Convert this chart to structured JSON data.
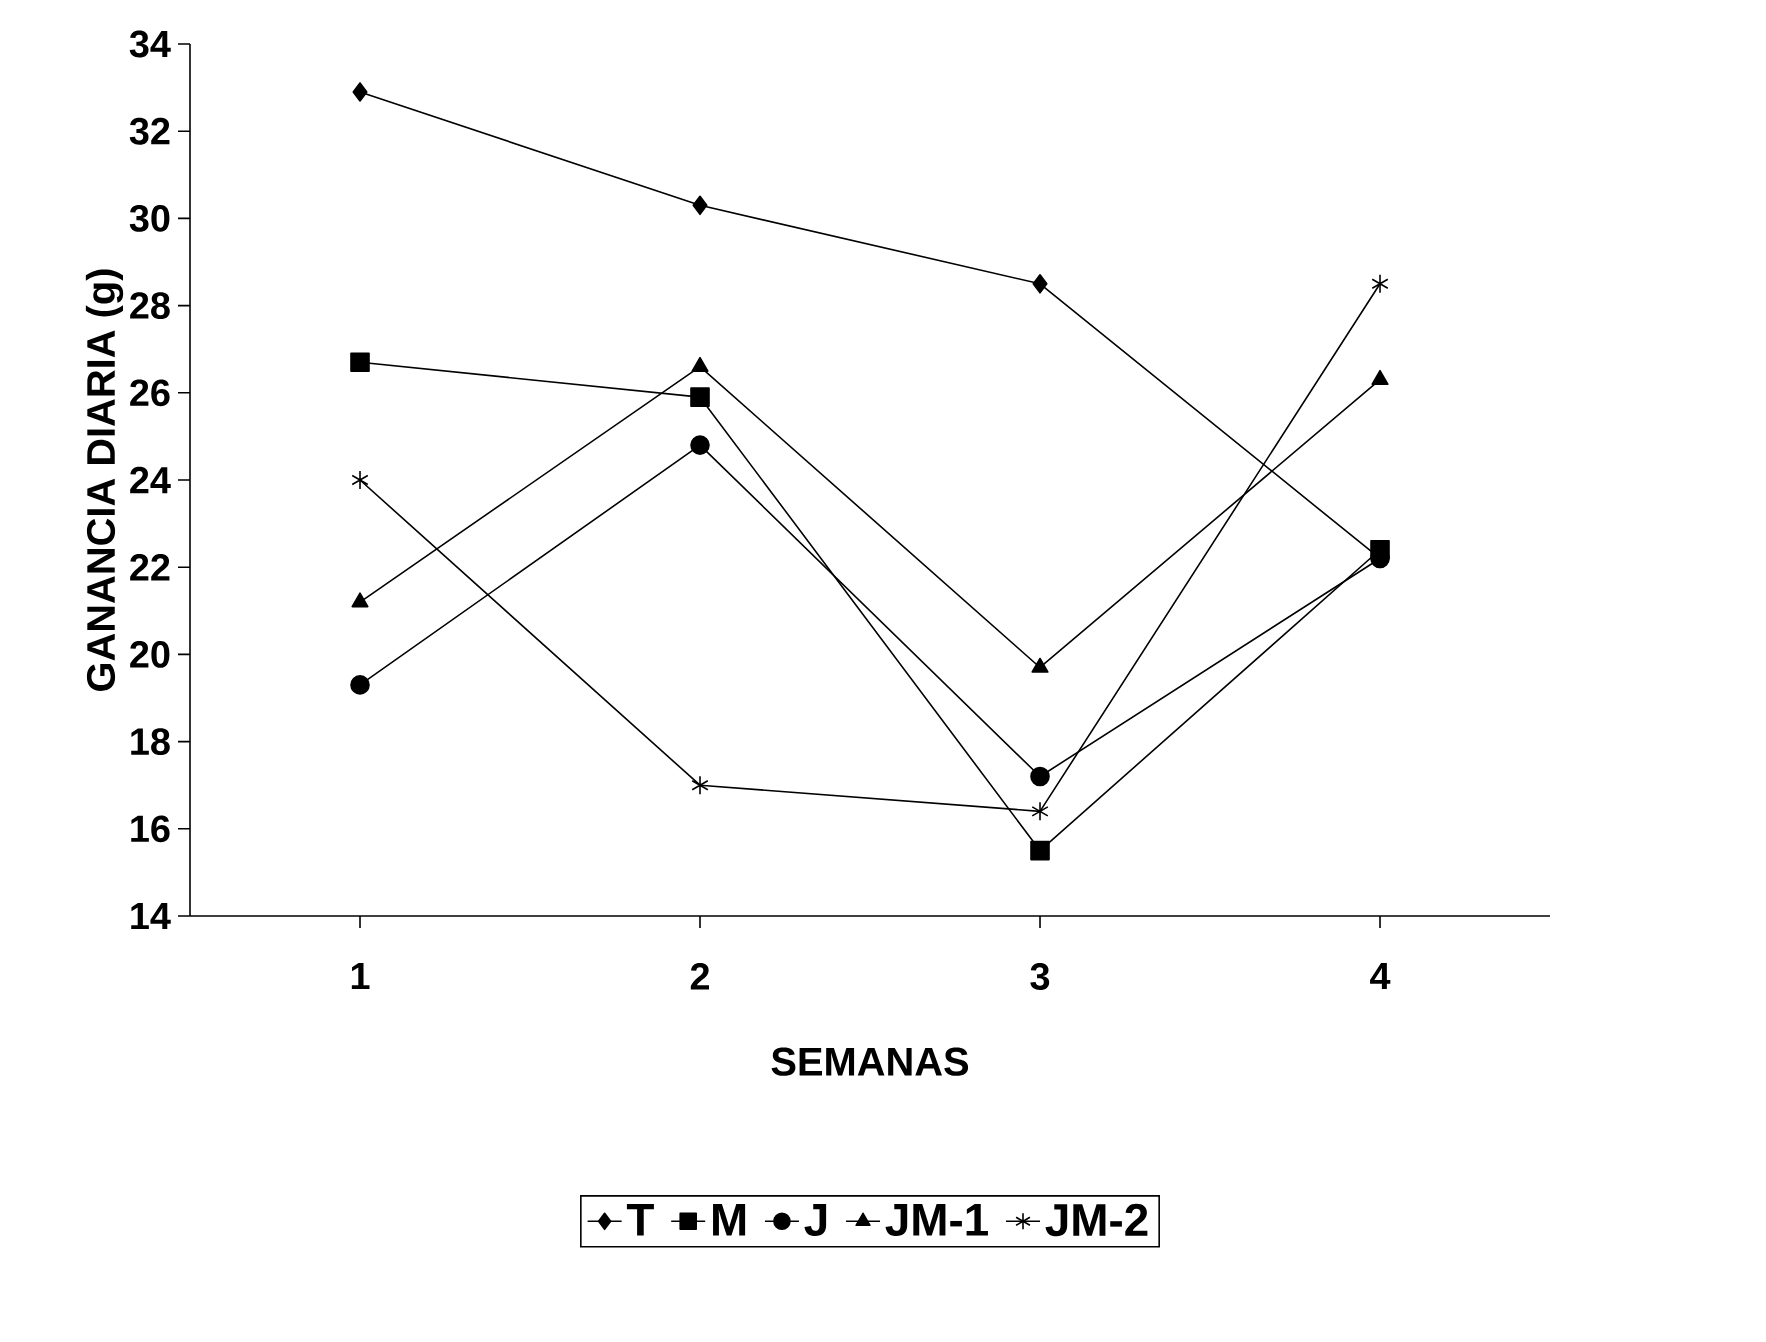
{
  "chart_data": {
    "type": "line",
    "xlabel": "SEMANAS",
    "ylabel": "GANANCIA DIARIA (g)",
    "categories": [
      "1",
      "2",
      "3",
      "4"
    ],
    "ylim": [
      14,
      34
    ],
    "yticks": [
      14,
      16,
      18,
      20,
      22,
      24,
      26,
      28,
      30,
      32,
      34
    ],
    "legend": "bottom",
    "grid": false,
    "line_style": "solid",
    "series": [
      {
        "name": "T",
        "color": "#000000",
        "marker": "diamond",
        "values": [
          32.9,
          30.3,
          28.5,
          22.2
        ]
      },
      {
        "name": "M",
        "color": "#000000",
        "marker": "square",
        "values": [
          26.7,
          25.9,
          15.5,
          22.4
        ]
      },
      {
        "name": "J",
        "color": "#000000",
        "marker": "circle",
        "values": [
          19.3,
          24.8,
          17.2,
          22.2
        ]
      },
      {
        "name": "JM-1",
        "color": "#000000",
        "marker": "triangle",
        "values": [
          21.2,
          26.6,
          19.7,
          26.3
        ]
      },
      {
        "name": "JM-2",
        "color": "#000000",
        "marker": "cross",
        "values": [
          24.0,
          17.0,
          16.4,
          28.5
        ]
      }
    ]
  }
}
